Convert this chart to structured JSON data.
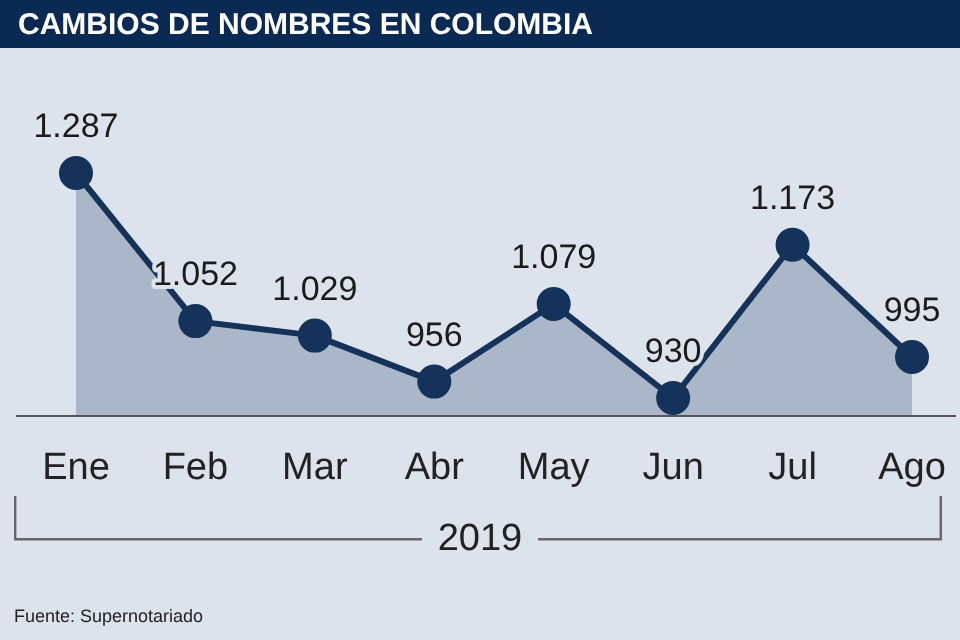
{
  "chart_data": {
    "type": "area",
    "title": "CAMBIOS DE NOMBRES EN COLOMBIA",
    "xlabel": "2019",
    "categories": [
      "Ene",
      "Feb",
      "Mar",
      "Abr",
      "May",
      "Jun",
      "Jul",
      "Ago"
    ],
    "series": [
      {
        "color": "#14325a",
        "values": [
          1287,
          1052,
          1029,
          956,
          1079,
          930,
          1173,
          995
        ],
        "value_labels": [
          "1.287",
          "1.052",
          "1.029",
          "956",
          "1.079",
          "930",
          "1.173",
          "995"
        ]
      }
    ],
    "marker": "circle",
    "line_style": "solid",
    "annotations": [
      "Fuente: Supernotariado"
    ]
  }
}
